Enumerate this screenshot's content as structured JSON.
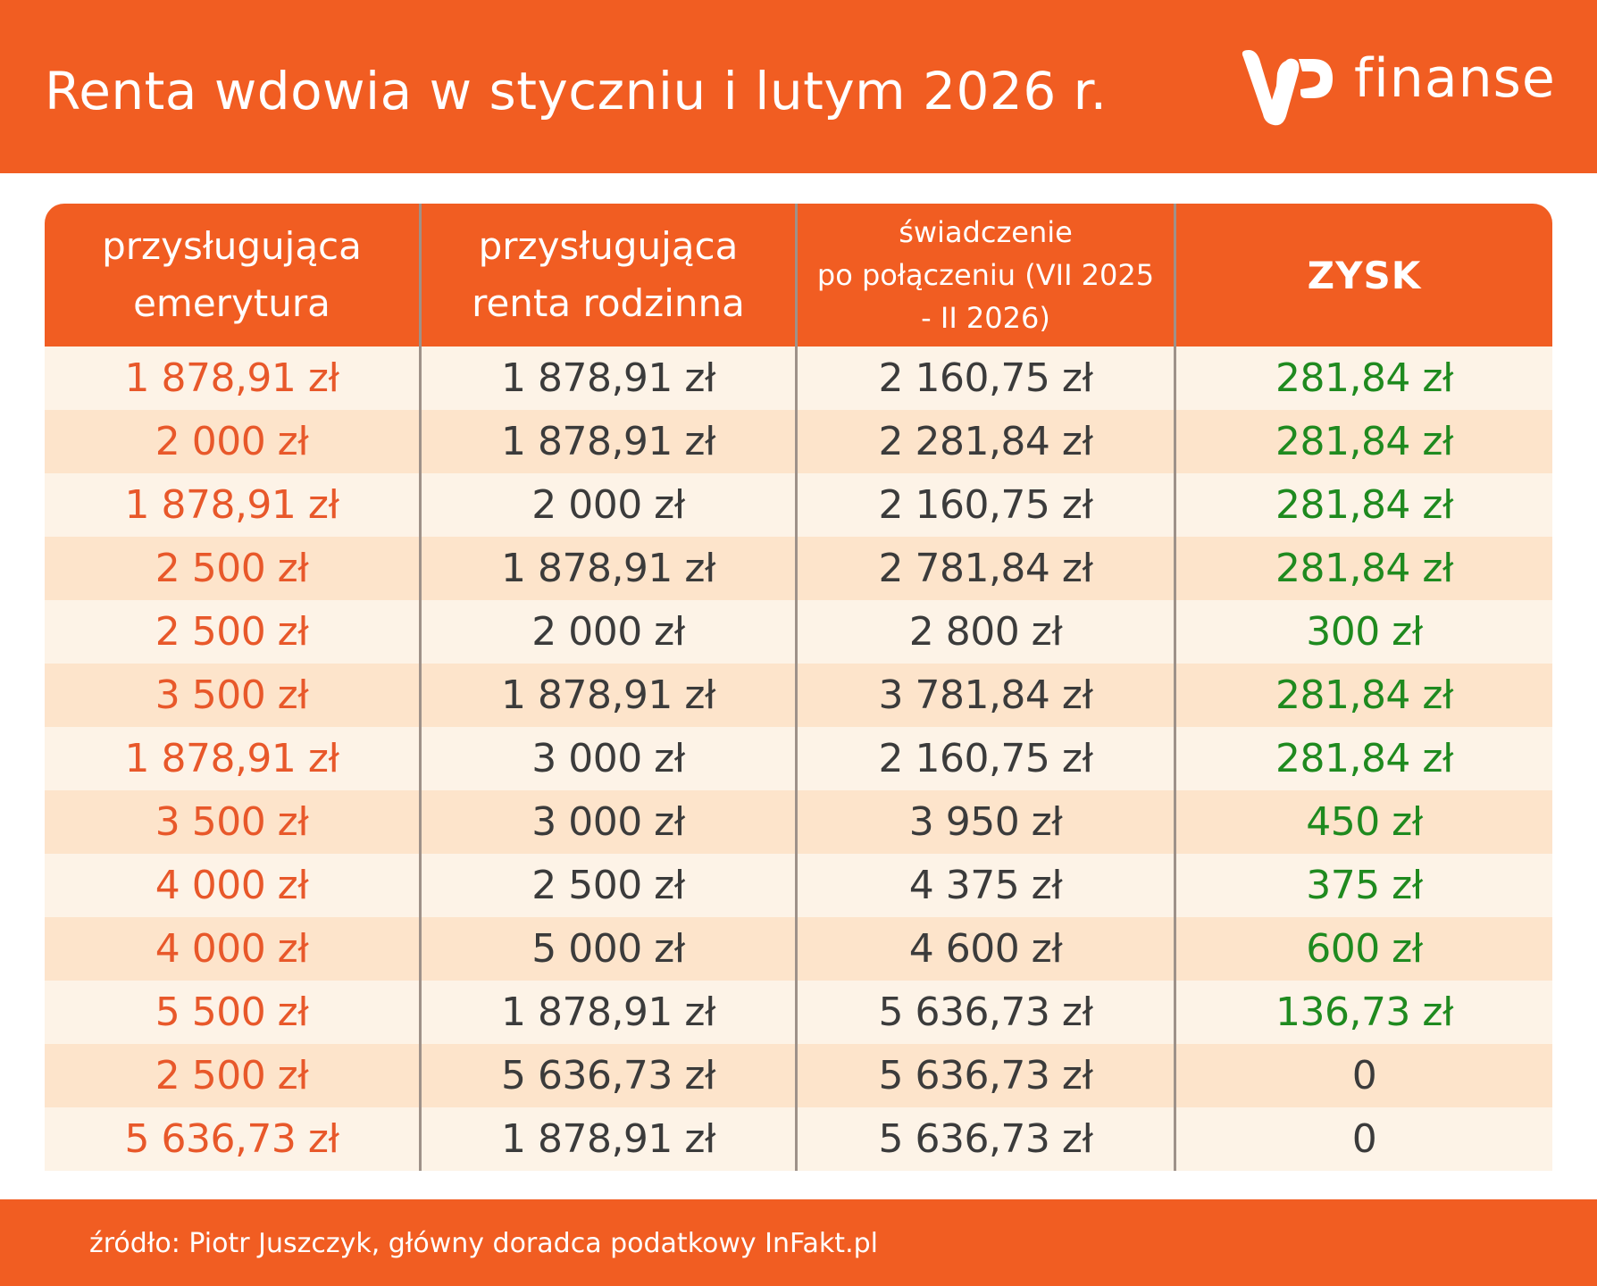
{
  "header": {
    "title": "Renta wdowia w styczniu i lutym 2026 r.",
    "logo_mark": "WP",
    "logo_text": "finanse",
    "background_color": "#f15d22"
  },
  "table": {
    "columns": [
      "przysługująca emerytura",
      "przysługująca renta rodzinna",
      "świadczenie po połączeniu (VII 2025 - II 2026)",
      "ZYSK"
    ],
    "column_lines": {
      "c1": [
        "przysługująca",
        "emerytura"
      ],
      "c2": [
        "przysługująca",
        "renta rodzinna"
      ],
      "c3": [
        "świadczenie",
        "po połączeniu (VII 2025",
        "- II 2026)"
      ],
      "c4": [
        "ZYSK"
      ]
    },
    "rows": [
      [
        "1 878,91 zł",
        "1 878,91 zł",
        "2 160,75 zł",
        "281,84 zł"
      ],
      [
        "2 000 zł",
        "1 878,91 zł",
        "2 281,84 zł",
        "281,84 zł"
      ],
      [
        "1 878,91 zł",
        "2 000 zł",
        "2 160,75 zł",
        "281,84 zł"
      ],
      [
        "2 500 zł",
        "1 878,91 zł",
        "2 781,84 zł",
        "281,84 zł"
      ],
      [
        "2 500 zł",
        "2 000 zł",
        "2 800 zł",
        "300 zł"
      ],
      [
        "3 500 zł",
        "1 878,91 zł",
        "3 781,84 zł",
        "281,84 zł"
      ],
      [
        "1 878,91 zł",
        "3 000 zł",
        "2 160,75 zł",
        "281,84 zł"
      ],
      [
        "3 500 zł",
        "3 000 zł",
        "3 950 zł",
        "450 zł"
      ],
      [
        "4 000 zł",
        "2 500 zł",
        "4 375 zł",
        "375 zł"
      ],
      [
        "4 000 zł",
        "5 000 zł",
        "4 600 zł",
        "600 zł"
      ],
      [
        "5 500 zł",
        "1 878,91 zł",
        "5 636,73 zł",
        "136,73 zł"
      ],
      [
        "2 500 zł",
        "5 636,73 zł",
        "5 636,73 zł",
        "0"
      ],
      [
        "5 636,73 zł",
        "1 878,91 zł",
        "5 636,73 zł",
        "0"
      ]
    ],
    "colors": {
      "header_bg": "#f15d22",
      "row_light": "#fdf3e7",
      "row_dark": "#fde4cb",
      "col1_text": "#e8582a",
      "value_text": "#3b3b3b",
      "profit_text": "#1f8a1f"
    }
  },
  "chart_data": {
    "type": "table",
    "title": "Renta wdowia w styczniu i lutym 2026 r.",
    "columns": [
      "przysługująca emerytura",
      "przysługująca renta rodzinna",
      "świadczenie po połączeniu (VII 2025 - II 2026)",
      "ZYSK"
    ],
    "rows": [
      [
        1878.91,
        1878.91,
        2160.75,
        281.84
      ],
      [
        2000,
        1878.91,
        2281.84,
        281.84
      ],
      [
        1878.91,
        2000,
        2160.75,
        281.84
      ],
      [
        2500,
        1878.91,
        2781.84,
        281.84
      ],
      [
        2500,
        2000,
        2800,
        300
      ],
      [
        3500,
        1878.91,
        3781.84,
        281.84
      ],
      [
        1878.91,
        3000,
        2160.75,
        281.84
      ],
      [
        3500,
        3000,
        3950,
        450
      ],
      [
        4000,
        2500,
        4375,
        375
      ],
      [
        4000,
        5000,
        4600,
        600
      ],
      [
        5500,
        1878.91,
        5636.73,
        136.73
      ],
      [
        2500,
        5636.73,
        5636.73,
        0
      ],
      [
        5636.73,
        1878.91,
        5636.73,
        0
      ]
    ],
    "unit": "zł"
  },
  "footer": {
    "source": "źródło: Piotr Juszczyk, główny doradca podatkowy InFakt.pl"
  }
}
